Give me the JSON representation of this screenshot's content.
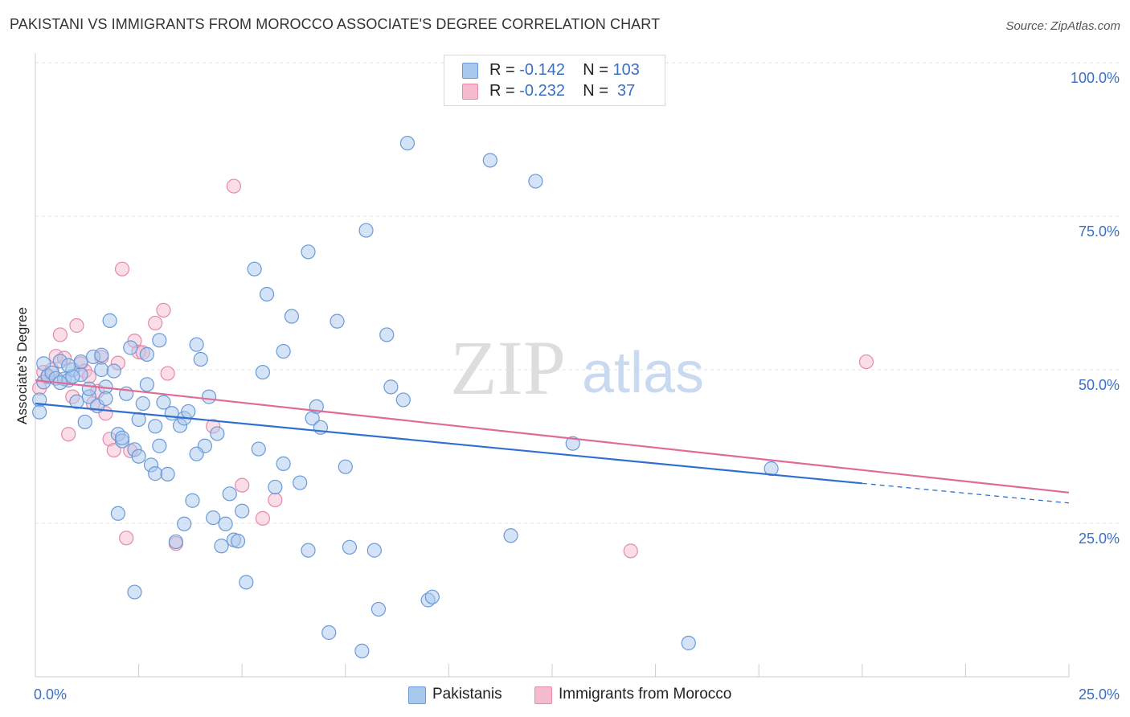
{
  "title": "PAKISTANI VS IMMIGRANTS FROM MOROCCO ASSOCIATE'S DEGREE CORRELATION CHART",
  "source": "Source: ZipAtlas.com",
  "watermark": {
    "zip": "ZIP",
    "atlas": "atlas"
  },
  "legend": {
    "rows": [
      {
        "r_label": "R =",
        "r_value": "-0.142",
        "n_label": "N =",
        "n_value": "103"
      },
      {
        "r_label": "R =",
        "r_value": "-0.232",
        "n_label": "N =",
        "n_value": " 37"
      }
    ]
  },
  "chart_data": {
    "type": "scatter",
    "title": "PAKISTANI VS IMMIGRANTS FROM MOROCCO ASSOCIATE'S DEGREE CORRELATION CHART",
    "xlabel": "",
    "ylabel": "Associate's Degree",
    "xlim": [
      0,
      25
    ],
    "ylim": [
      0,
      100
    ],
    "x_tick_labels": [
      "0.0%",
      "25.0%"
    ],
    "y_tick_labels": [
      "100.0%",
      "75.0%",
      "50.0%",
      "25.0%"
    ],
    "y_tick_values": [
      100,
      75,
      50,
      25
    ],
    "colors": {
      "pakistanis_fill": "#a9c8ee",
      "pakistanis_stroke": "#6a9ad6",
      "pakistanis_line": "#2f6fd0",
      "morocco_fill": "#f5bcd0",
      "morocco_stroke": "#e38aab",
      "morocco_line": "#e06c96",
      "tick_label": "#3a6fc4"
    },
    "series": [
      {
        "name": "Pakistanis",
        "r": -0.142,
        "n": 103,
        "trend": {
          "x0": 0,
          "y0": 44.5,
          "x1": 20.0,
          "y1": 31.5,
          "dash_to_x": 25,
          "dash_to_y": 28.3
        },
        "points": [
          [
            0.1,
            45.1
          ],
          [
            0.1,
            43.1
          ],
          [
            0.2,
            51.0
          ],
          [
            0.2,
            48.0
          ],
          [
            0.3,
            49.0
          ],
          [
            0.4,
            49.5
          ],
          [
            0.5,
            48.6
          ],
          [
            0.6,
            51.4
          ],
          [
            0.7,
            48.5
          ],
          [
            0.8,
            48.3
          ],
          [
            0.9,
            50.0
          ],
          [
            1.0,
            44.8
          ],
          [
            1.1,
            49.2
          ],
          [
            1.2,
            41.5
          ],
          [
            1.3,
            45.6
          ],
          [
            1.4,
            52.1
          ],
          [
            1.5,
            44.1
          ],
          [
            1.6,
            50.0
          ],
          [
            1.7,
            47.2
          ],
          [
            1.8,
            58.0
          ],
          [
            1.9,
            49.8
          ],
          [
            2.0,
            39.5
          ],
          [
            2.1,
            38.4
          ],
          [
            2.2,
            46.1
          ],
          [
            2.3,
            53.6
          ],
          [
            2.4,
            37.0
          ],
          [
            2.5,
            35.9
          ],
          [
            2.6,
            44.5
          ],
          [
            2.7,
            47.6
          ],
          [
            2.8,
            34.5
          ],
          [
            2.9,
            33.1
          ],
          [
            2.9,
            40.8
          ],
          [
            3.0,
            37.6
          ],
          [
            3.1,
            44.7
          ],
          [
            3.2,
            33.0
          ],
          [
            3.3,
            42.9
          ],
          [
            3.4,
            22.0
          ],
          [
            3.5,
            40.9
          ],
          [
            3.6,
            42.1
          ],
          [
            3.7,
            43.2
          ],
          [
            3.8,
            28.7
          ],
          [
            3.9,
            54.1
          ],
          [
            4.0,
            51.7
          ],
          [
            4.1,
            37.6
          ],
          [
            4.2,
            45.6
          ],
          [
            4.3,
            25.9
          ],
          [
            4.4,
            39.6
          ],
          [
            4.5,
            21.3
          ],
          [
            4.6,
            24.9
          ],
          [
            4.7,
            29.8
          ],
          [
            4.8,
            22.3
          ],
          [
            5.0,
            27.0
          ],
          [
            5.1,
            15.4
          ],
          [
            5.3,
            66.4
          ],
          [
            5.5,
            49.6
          ],
          [
            5.6,
            62.3
          ],
          [
            5.8,
            30.9
          ],
          [
            6.0,
            53.0
          ],
          [
            6.2,
            58.7
          ],
          [
            6.4,
            31.6
          ],
          [
            6.6,
            69.2
          ],
          [
            6.6,
            20.6
          ],
          [
            6.7,
            42.1
          ],
          [
            6.8,
            44.0
          ],
          [
            6.9,
            40.6
          ],
          [
            7.1,
            7.2
          ],
          [
            7.3,
            57.9
          ],
          [
            7.5,
            34.2
          ],
          [
            7.6,
            21.1
          ],
          [
            8.0,
            72.7
          ],
          [
            8.2,
            20.6
          ],
          [
            8.3,
            11.0
          ],
          [
            8.5,
            55.7
          ],
          [
            8.6,
            47.2
          ],
          [
            9.0,
            86.9
          ],
          [
            9.5,
            12.5
          ],
          [
            9.6,
            13.0
          ],
          [
            11.0,
            84.1
          ],
          [
            11.5,
            23.0
          ],
          [
            12.1,
            80.7
          ],
          [
            13.0,
            38.0
          ],
          [
            15.8,
            5.5
          ],
          [
            17.8,
            33.9
          ],
          [
            2.4,
            13.8
          ],
          [
            1.3,
            46.9
          ],
          [
            0.9,
            48.9
          ],
          [
            1.1,
            51.3
          ],
          [
            2.1,
            38.9
          ],
          [
            2.7,
            52.5
          ],
          [
            3.0,
            54.8
          ],
          [
            2.5,
            41.9
          ],
          [
            1.6,
            52.4
          ],
          [
            4.9,
            22.1
          ],
          [
            7.9,
            4.2
          ],
          [
            8.9,
            45.1
          ],
          [
            3.9,
            36.3
          ],
          [
            0.6,
            47.9
          ],
          [
            2.0,
            26.6
          ],
          [
            5.4,
            37.1
          ],
          [
            0.8,
            50.7
          ],
          [
            1.7,
            45.3
          ],
          [
            3.6,
            24.9
          ],
          [
            6.0,
            34.7
          ]
        ]
      },
      {
        "name": "Immigrants from Morocco",
        "r": -0.232,
        "n": 37,
        "trend": {
          "x0": 0,
          "y0": 48.3,
          "x1": 25,
          "y1": 30.0
        },
        "points": [
          [
            0.1,
            47.0
          ],
          [
            0.2,
            49.6
          ],
          [
            0.3,
            48.8
          ],
          [
            0.4,
            50.0
          ],
          [
            0.5,
            52.2
          ],
          [
            0.6,
            55.7
          ],
          [
            0.7,
            51.9
          ],
          [
            0.8,
            39.5
          ],
          [
            0.9,
            45.6
          ],
          [
            1.0,
            57.2
          ],
          [
            1.1,
            51.0
          ],
          [
            1.2,
            49.8
          ],
          [
            1.3,
            48.9
          ],
          [
            1.4,
            44.5
          ],
          [
            1.5,
            46.5
          ],
          [
            1.6,
            52.0
          ],
          [
            1.7,
            42.9
          ],
          [
            1.8,
            38.7
          ],
          [
            1.9,
            36.9
          ],
          [
            2.0,
            51.1
          ],
          [
            2.1,
            66.4
          ],
          [
            2.2,
            22.6
          ],
          [
            2.3,
            36.8
          ],
          [
            2.4,
            54.7
          ],
          [
            2.5,
            52.9
          ],
          [
            2.6,
            52.8
          ],
          [
            2.9,
            57.6
          ],
          [
            3.1,
            59.7
          ],
          [
            3.2,
            49.4
          ],
          [
            3.4,
            21.7
          ],
          [
            4.3,
            40.8
          ],
          [
            4.8,
            79.9
          ],
          [
            5.0,
            31.2
          ],
          [
            5.5,
            25.8
          ],
          [
            5.8,
            28.8
          ],
          [
            14.4,
            20.5
          ],
          [
            20.1,
            51.3
          ]
        ]
      }
    ]
  },
  "bottom_legend": {
    "items": [
      {
        "label": "Pakistanis"
      },
      {
        "label": "Immigrants from Morocco"
      }
    ]
  }
}
